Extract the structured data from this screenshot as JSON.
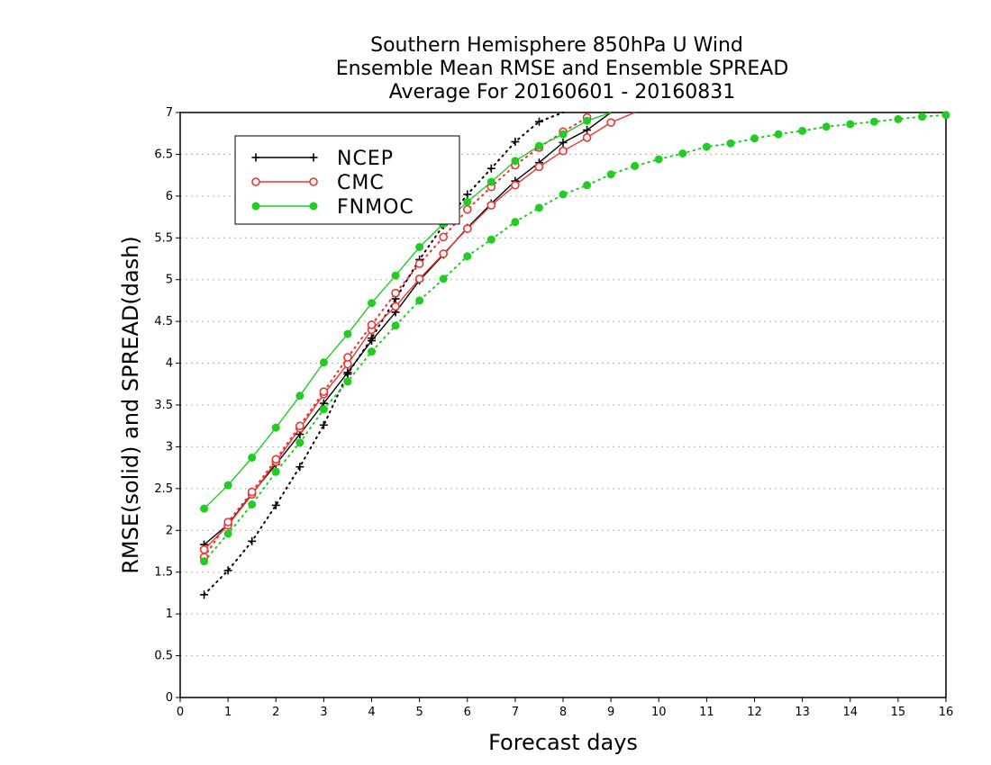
{
  "chart_data": {
    "type": "line",
    "title_lines": [
      "Southern Hemisphere 850hPa U Wind",
      "Ensemble Mean RMSE and Ensemble SPREAD",
      "Average For 20160601 - 20160831"
    ],
    "xlabel": "Forecast days",
    "ylabel": "RMSE(solid) and SPREAD(dash)",
    "xlim": [
      0,
      16
    ],
    "ylim": [
      0,
      7
    ],
    "xticks": [
      "0",
      "1",
      "2",
      "3",
      "4",
      "5",
      "6",
      "7",
      "8",
      "9",
      "10",
      "11",
      "12",
      "13",
      "14",
      "15",
      "16"
    ],
    "yticks": [
      "0",
      "0.5",
      "1",
      "1.5",
      "2",
      "2.5",
      "3",
      "3.5",
      "4",
      "4.5",
      "5",
      "5.5",
      "6",
      "6.5",
      "7"
    ],
    "grid": "horizontal dotted",
    "legend_position": "top-left",
    "series": [
      {
        "name": "NCEP",
        "color": "#000000",
        "marker": "plus",
        "style": "solid",
        "x": [
          0.5,
          1,
          1.5,
          2,
          2.5,
          3,
          3.5,
          4,
          4.5,
          5,
          5.5,
          6,
          6.5,
          7,
          7.5,
          8,
          8.5,
          9
        ],
        "y": [
          1.83,
          2.07,
          2.44,
          2.79,
          3.15,
          3.52,
          3.89,
          4.27,
          4.61,
          4.99,
          5.3,
          5.62,
          5.91,
          6.18,
          6.4,
          6.64,
          6.79,
          7.0
        ]
      },
      {
        "name": "NCEP spread",
        "color": "#000000",
        "marker": "plus",
        "style": "dotted",
        "x": [
          0.5,
          1,
          1.5,
          2,
          2.5,
          3,
          3.5,
          4,
          4.5,
          5,
          5.5,
          6,
          6.5,
          7,
          7.5,
          8
        ],
        "y": [
          1.23,
          1.52,
          1.87,
          2.3,
          2.76,
          3.26,
          3.87,
          4.3,
          4.77,
          5.24,
          5.65,
          6.02,
          6.33,
          6.65,
          6.89,
          7.0
        ]
      },
      {
        "name": "CMC",
        "color": "#ee3333",
        "marker": "circle",
        "style": "solid",
        "x": [
          0.5,
          1,
          1.5,
          2,
          2.5,
          3,
          3.5,
          4,
          4.5,
          5,
          5.5,
          6,
          6.5,
          7,
          7.5,
          8,
          8.5,
          9,
          9.5
        ],
        "y": [
          1.77,
          2.06,
          2.43,
          2.82,
          3.22,
          3.63,
          3.99,
          4.4,
          4.68,
          5.01,
          5.31,
          5.61,
          5.89,
          6.13,
          6.35,
          6.54,
          6.7,
          6.88,
          7.0
        ]
      },
      {
        "name": "CMC spread",
        "color": "#ee3333",
        "marker": "circle",
        "style": "dotted",
        "x": [
          0.5,
          1,
          1.5,
          2,
          2.5,
          3,
          3.5,
          4,
          4.5,
          5,
          5.5,
          6,
          6.5,
          7,
          7.5,
          8,
          8.5
        ],
        "y": [
          1.68,
          2.1,
          2.46,
          2.85,
          3.25,
          3.66,
          4.07,
          4.46,
          4.84,
          5.19,
          5.51,
          5.84,
          6.11,
          6.37,
          6.58,
          6.77,
          6.94
        ]
      },
      {
        "name": "FNMOC",
        "color": "#22cc22",
        "marker": "filled-circle",
        "style": "solid",
        "x": [
          0.5,
          1,
          1.5,
          2,
          2.5,
          3,
          3.5,
          4,
          4.5,
          5,
          5.5,
          6,
          6.5,
          7,
          7.5,
          8,
          8.5,
          9
        ],
        "y": [
          2.26,
          2.54,
          2.87,
          3.23,
          3.61,
          4.01,
          4.35,
          4.72,
          5.05,
          5.39,
          5.67,
          5.93,
          6.17,
          6.42,
          6.6,
          6.74,
          6.9,
          7.0
        ]
      },
      {
        "name": "FNMOC spread",
        "color": "#22cc22",
        "marker": "filled-circle",
        "style": "dotted",
        "x": [
          0.5,
          1,
          1.5,
          2,
          2.5,
          3,
          3.5,
          4,
          4.5,
          5,
          5.5,
          6,
          6.5,
          7,
          7.5,
          8,
          8.5,
          9,
          9.5,
          10,
          10.5,
          11,
          11.5,
          12,
          12.5,
          13,
          13.5,
          14,
          14.5,
          15,
          15.5,
          16
        ],
        "y": [
          1.63,
          1.96,
          2.31,
          2.7,
          3.05,
          3.45,
          3.78,
          4.14,
          4.45,
          4.75,
          5.01,
          5.28,
          5.48,
          5.69,
          5.86,
          6.02,
          6.13,
          6.26,
          6.36,
          6.44,
          6.51,
          6.59,
          6.63,
          6.69,
          6.74,
          6.78,
          6.83,
          6.86,
          6.89,
          6.92,
          6.95,
          6.97
        ]
      }
    ],
    "legend": [
      {
        "label": "NCEP",
        "color": "#000000",
        "marker": "plus"
      },
      {
        "label": "CMC",
        "color": "#ee3333",
        "marker": "circle"
      },
      {
        "label": "FNMOC",
        "color": "#22cc22",
        "marker": "filled-circle"
      }
    ]
  }
}
